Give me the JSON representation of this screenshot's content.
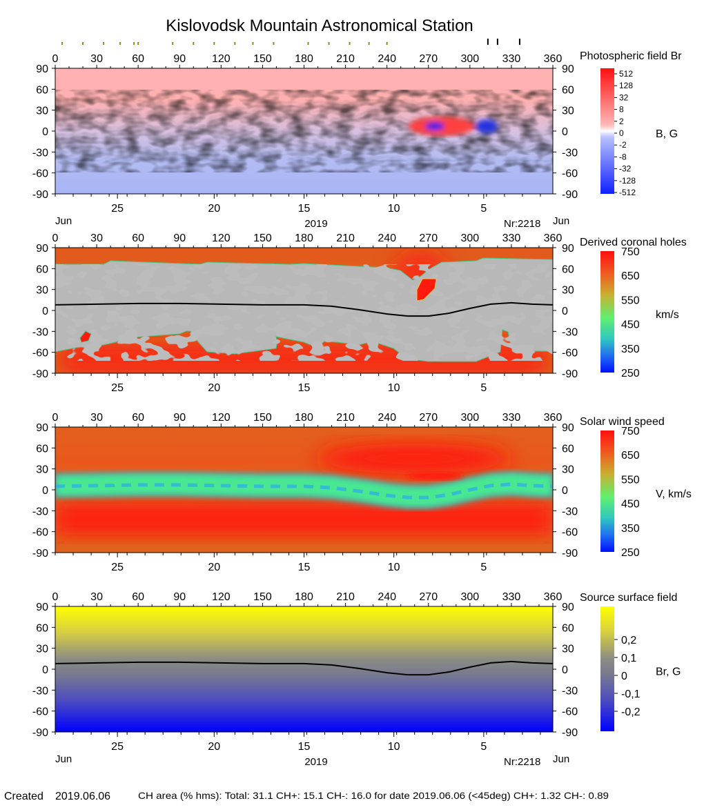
{
  "title": "Kislovodsk Mountain Astronomical Station",
  "top_markers": {
    "olive_longitudes": [
      5,
      20,
      35,
      47,
      57,
      60,
      85,
      100,
      115,
      130,
      143,
      158,
      183,
      198,
      213,
      227,
      240
    ],
    "black_longitudes": [
      313,
      320,
      336
    ]
  },
  "axes": {
    "longitude_ticks": [
      "0",
      "30",
      "60",
      "90",
      "120",
      "150",
      "180",
      "210",
      "240",
      "270",
      "300",
      "330",
      "360"
    ],
    "latitude_ticks": [
      "90",
      "60",
      "30",
      "0",
      "-30",
      "-60",
      "-90"
    ],
    "day_ticks": [
      "25",
      "20",
      "15",
      "10",
      "5"
    ],
    "month_label_left": "Jun",
    "month_label_right": "Jun",
    "year_label": "2019",
    "rotation_label": "Nr:2218"
  },
  "panels": [
    {
      "id": "photospheric",
      "title": "Photospheric field Br",
      "unit": "B, G",
      "colorbar_labels": [
        "512",
        "128",
        "32",
        "8",
        "2",
        "0",
        "-2",
        "-8",
        "-32",
        "-128",
        "-512"
      ]
    },
    {
      "id": "coronal-holes",
      "title": "Derived coronal holes",
      "unit": "km/s",
      "colorbar_labels": [
        "750",
        "650",
        "550",
        "450",
        "350",
        "250"
      ]
    },
    {
      "id": "solar-wind",
      "title": "Solar wind speed",
      "unit": "V, km/s",
      "colorbar_labels": [
        "750",
        "650",
        "550",
        "450",
        "350",
        "250"
      ]
    },
    {
      "id": "source-surface",
      "title": "Source surface field",
      "unit": "Br, G",
      "colorbar_labels": [
        "0,2",
        "0,1",
        "0",
        "-0,1",
        "-0,2"
      ]
    }
  ],
  "footer": {
    "created_label": "Created",
    "created_date": "2019.06.06",
    "stats": "CH area (% hms): Total: 31.1 CH+: 15.1   CH-: 16.0 for date 2019.06.06 (<45deg) CH+: 1.32    CH-: 0.89"
  },
  "colors": {
    "positive": "#ff2020",
    "negative": "#2030ff",
    "coronal_hole_fill": "#e0601c",
    "wind_fast": "#ff1a10",
    "wind_slow": "#40e890",
    "field_positive": "#ffff00",
    "field_negative": "#0000ff"
  },
  "chart_data": [
    {
      "type": "heatmap",
      "title": "Photospheric field Br",
      "x_range": [
        0,
        360
      ],
      "y_range": [
        -90,
        90
      ],
      "colorbar_unit": "B, G",
      "colorbar_values": [
        512,
        128,
        32,
        8,
        2,
        0,
        -2,
        -8,
        -32,
        -128,
        -512
      ],
      "features": [
        {
          "name": "active region positive",
          "lon": 262,
          "lat": 5,
          "sign": "+"
        },
        {
          "name": "active region negative",
          "lon": 270,
          "lat": 5,
          "sign": "-"
        },
        {
          "name": "negative patch",
          "lon": 310,
          "lat": 7,
          "sign": "-"
        }
      ]
    },
    {
      "type": "heatmap",
      "title": "Derived coronal holes",
      "x_range": [
        0,
        360
      ],
      "y_range": [
        -90,
        90
      ],
      "colorbar_unit": "km/s",
      "colorbar_range": [
        250,
        750
      ],
      "neutral_line": {
        "lon": [
          0,
          30,
          60,
          90,
          120,
          150,
          180,
          200,
          220,
          240,
          255,
          270,
          285,
          300,
          315,
          330,
          345,
          360
        ],
        "lat": [
          8,
          9,
          10,
          10,
          9,
          8,
          8,
          6,
          1,
          -5,
          -8,
          -8,
          -4,
          3,
          9,
          11,
          9,
          8
        ]
      }
    },
    {
      "type": "heatmap",
      "title": "Solar wind speed",
      "x_range": [
        0,
        360
      ],
      "y_range": [
        -90,
        90
      ],
      "colorbar_unit": "V, km/s",
      "colorbar_range": [
        250,
        750
      ]
    },
    {
      "type": "heatmap",
      "title": "Source surface field",
      "x_range": [
        0,
        360
      ],
      "y_range": [
        -90,
        90
      ],
      "colorbar_unit": "Br, G",
      "colorbar_values": [
        0.2,
        0.1,
        0,
        -0.1,
        -0.2
      ],
      "neutral_line": {
        "lon": [
          0,
          30,
          60,
          90,
          120,
          150,
          180,
          200,
          220,
          240,
          255,
          270,
          285,
          300,
          315,
          330,
          345,
          360
        ],
        "lat": [
          8,
          9,
          10,
          10,
          9,
          8,
          8,
          6,
          1,
          -5,
          -8,
          -8,
          -4,
          3,
          9,
          11,
          9,
          8
        ]
      }
    }
  ]
}
